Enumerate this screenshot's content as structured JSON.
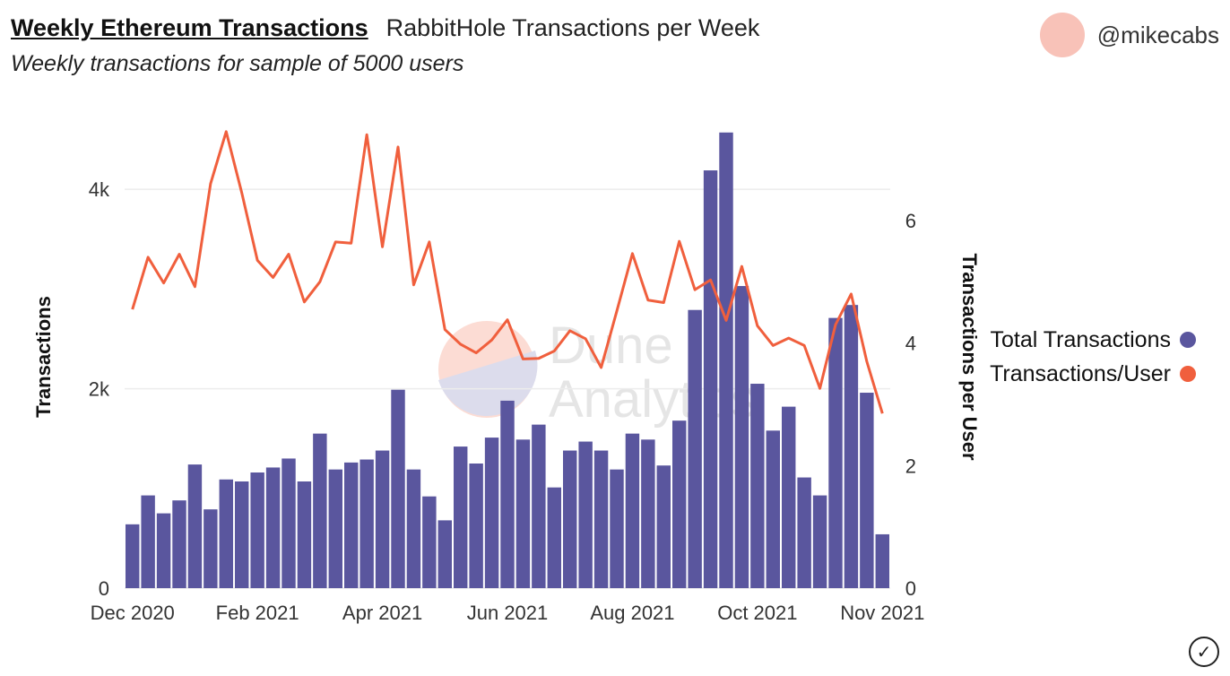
{
  "header": {
    "title": "Weekly Ethereum Transactions",
    "query_name": "RabbitHole Transactions per Week",
    "subtitle": "Weekly transactions for sample of 5000 users"
  },
  "author": {
    "handle": "@mikecabs",
    "avatar_color": "#f8c2b8"
  },
  "watermark": {
    "line1": "Dune",
    "line2": "Analytics"
  },
  "chart_data": {
    "type": "bar+line",
    "x_tick_labels": [
      "Dec 2020",
      "Feb 2021",
      "Apr 2021",
      "Jun 2021",
      "Aug 2021",
      "Oct 2021",
      "Nov 2021"
    ],
    "x_tick_week_index": [
      0,
      8,
      16,
      24,
      32,
      40,
      48
    ],
    "y_left": {
      "label": "Transactions",
      "ticks": [
        0,
        2000,
        4000
      ],
      "tick_labels": [
        "0",
        "2k",
        "4k"
      ],
      "max": 4640
    },
    "y_right": {
      "label": "Transactions per User",
      "ticks": [
        0,
        2,
        4,
        6
      ],
      "tick_labels": [
        "0",
        "2",
        "4",
        "6"
      ],
      "max": 7.55
    },
    "legend_position": "right",
    "gridlines": true,
    "series": [
      {
        "name": "Total Transactions",
        "type": "bar",
        "axis": "left",
        "color": "#5a569e",
        "values": [
          640,
          930,
          750,
          880,
          1240,
          790,
          1090,
          1070,
          1160,
          1210,
          1300,
          1070,
          1550,
          1190,
          1260,
          1290,
          1380,
          1990,
          1190,
          920,
          680,
          1420,
          1250,
          1510,
          1880,
          1490,
          1640,
          1010,
          1380,
          1470,
          1380,
          1190,
          1550,
          1490,
          1230,
          1680,
          2790,
          4190,
          4570,
          3030,
          2050,
          1580,
          1820,
          1110,
          930,
          2710,
          2840,
          1960,
          540
        ]
      },
      {
        "name": "Transactions/User",
        "type": "line",
        "axis": "right",
        "color": "#f05f3d",
        "values": [
          4.55,
          5.4,
          4.98,
          5.45,
          4.92,
          6.6,
          7.45,
          6.45,
          5.35,
          5.07,
          5.45,
          4.67,
          5.0,
          5.65,
          5.63,
          7.4,
          5.57,
          7.2,
          4.95,
          5.65,
          4.22,
          3.98,
          3.84,
          4.05,
          4.38,
          3.74,
          3.75,
          3.87,
          4.2,
          4.07,
          3.6,
          4.52,
          5.46,
          4.7,
          4.66,
          5.66,
          4.87,
          5.03,
          4.37,
          5.25,
          4.28,
          3.96,
          4.08,
          3.96,
          3.26,
          4.3,
          4.8,
          3.7,
          2.85
        ]
      }
    ]
  },
  "status_icon": "check-circle-icon"
}
